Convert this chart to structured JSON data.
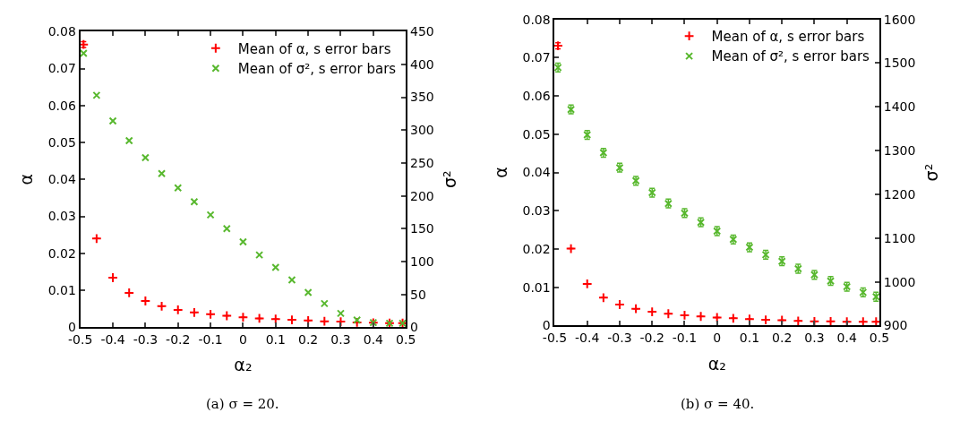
{
  "chart_data": [
    {
      "type": "scatter",
      "title": "(a) σ = 20.",
      "xlabel": "α₂",
      "ylabel": "α",
      "y2label": "σ²",
      "x": [
        -0.49,
        -0.45,
        -0.4,
        -0.35,
        -0.3,
        -0.25,
        -0.2,
        -0.15,
        -0.1,
        -0.05,
        0,
        0.05,
        0.1,
        0.15,
        0.2,
        0.25,
        0.3,
        0.35,
        0.4,
        0.45,
        0.49
      ],
      "xlim": [
        -0.5,
        0.5
      ],
      "xticks": [
        -0.5,
        -0.4,
        -0.3,
        -0.2,
        -0.1,
        0,
        0.1,
        0.2,
        0.3,
        0.4,
        0.5
      ],
      "ylim": [
        0,
        0.08
      ],
      "yticks": [
        0,
        0.01,
        0.02,
        0.03,
        0.04,
        0.05,
        0.06,
        0.07,
        0.08
      ],
      "y2lim": [
        0,
        450
      ],
      "y2ticks": [
        0,
        50,
        100,
        150,
        200,
        250,
        300,
        350,
        400,
        450
      ],
      "legend": "top right",
      "series": [
        {
          "name": "Mean of α, s error bars",
          "color": "#ff0000",
          "marker": "cross",
          "values": [
            0.0765,
            0.024,
            0.0134,
            0.0093,
            0.0071,
            0.0057,
            0.0047,
            0.004,
            0.0035,
            0.0031,
            0.0027,
            0.0024,
            0.0022,
            0.002,
            0.0018,
            0.0016,
            0.0015,
            0.0013,
            0.0012,
            0.0011,
            0.0011
          ],
          "errors": [
            0.0008,
            null,
            null,
            null,
            null,
            null,
            null,
            null,
            null,
            null,
            null,
            null,
            null,
            null,
            null,
            null,
            null,
            null,
            null,
            null,
            null
          ]
        },
        {
          "name": "Mean of σ², s error bars",
          "color": "#58b82e",
          "marker": "x",
          "axis": "y2",
          "values": [
            417,
            353,
            314,
            284,
            258,
            234,
            212,
            191,
            171,
            150,
            130,
            110,
            91,
            72,
            53,
            36,
            21,
            11,
            7,
            6,
            6
          ]
        }
      ]
    },
    {
      "type": "scatter",
      "title": "(b) σ = 40.",
      "xlabel": "α₂",
      "ylabel": "α",
      "y2label": "σ²",
      "x": [
        -0.49,
        -0.45,
        -0.4,
        -0.35,
        -0.3,
        -0.25,
        -0.2,
        -0.15,
        -0.1,
        -0.05,
        0,
        0.05,
        0.1,
        0.15,
        0.2,
        0.25,
        0.3,
        0.35,
        0.4,
        0.45,
        0.49
      ],
      "xlim": [
        -0.5,
        0.5
      ],
      "xticks": [
        -0.5,
        -0.4,
        -0.3,
        -0.2,
        -0.1,
        0,
        0.1,
        0.2,
        0.3,
        0.4,
        0.5
      ],
      "ylim": [
        0,
        0.08
      ],
      "yticks": [
        0,
        0.01,
        0.02,
        0.03,
        0.04,
        0.05,
        0.06,
        0.07,
        0.08
      ],
      "y2lim": [
        900,
        1600
      ],
      "y2ticks": [
        900,
        1000,
        1100,
        1200,
        1300,
        1400,
        1500,
        1600
      ],
      "legend": "top right",
      "series": [
        {
          "name": "Mean of α, s error bars",
          "color": "#ff0000",
          "marker": "cross",
          "values": [
            0.0731,
            0.0201,
            0.0109,
            0.0073,
            0.0055,
            0.0044,
            0.0036,
            0.0031,
            0.0027,
            0.0024,
            0.0021,
            0.0019,
            0.0017,
            0.0015,
            0.0014,
            0.0012,
            0.0011,
            0.0011,
            0.001,
            0.001,
            0.001
          ],
          "errors": [
            0.0008,
            null,
            null,
            null,
            null,
            null,
            null,
            null,
            null,
            null,
            null,
            null,
            null,
            null,
            null,
            null,
            null,
            null,
            null,
            null,
            null
          ]
        },
        {
          "name": "Mean of σ², s error bars",
          "color": "#58b82e",
          "marker": "x",
          "axis": "y2",
          "values": [
            1490,
            1394,
            1336,
            1295,
            1261,
            1231,
            1204,
            1179,
            1157,
            1136,
            1116,
            1097,
            1079,
            1062,
            1047,
            1030,
            1016,
            1002,
            989,
            976,
            966
          ],
          "errors": [
            10,
            10,
            10,
            10,
            10,
            10,
            10,
            10,
            10,
            10,
            10,
            10,
            10,
            10,
            10,
            10,
            10,
            10,
            10,
            10,
            10
          ]
        }
      ]
    }
  ]
}
